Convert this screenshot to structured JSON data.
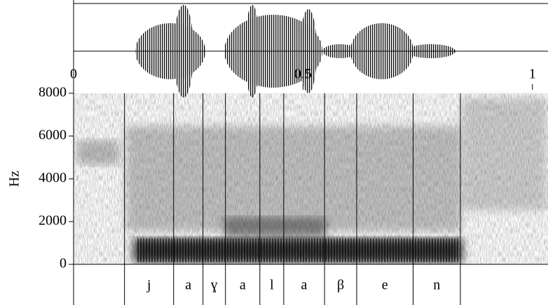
{
  "chart_data": {
    "type": "spectrogram",
    "y_label": "Hz",
    "xlim": [
      0,
      1.034
    ],
    "xticks": [
      0,
      0.5,
      1
    ],
    "ylim": [
      0,
      8000
    ],
    "yticks": [
      0,
      2000,
      4000,
      6000,
      8000
    ],
    "segments": {
      "boundaries": [
        0.111,
        0.218,
        0.282,
        0.331,
        0.406,
        0.458,
        0.547,
        0.617,
        0.74,
        0.843
      ],
      "labels": [
        "j",
        "a",
        "ɣ",
        "a",
        "l",
        "a",
        "β",
        "e",
        "n"
      ]
    }
  }
}
